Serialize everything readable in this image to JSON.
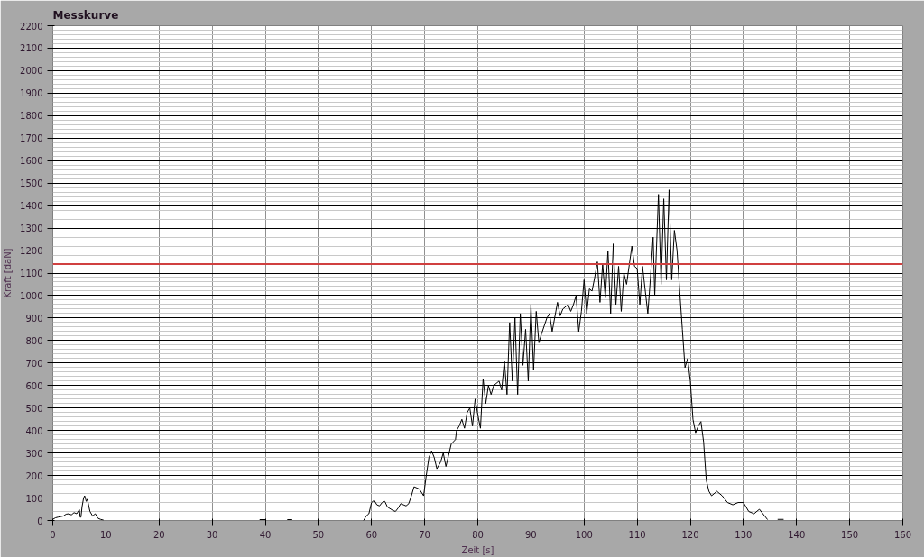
{
  "chart_data": {
    "type": "line",
    "title": "Messkurve",
    "xlabel": "Zeit [s]",
    "ylabel": "Kraft [daN]",
    "x": [
      0,
      0.5,
      1,
      2,
      2.5,
      3,
      3.5,
      4,
      4.5,
      5,
      5.15,
      5.3,
      5.5,
      5.8,
      6,
      6.3,
      6.5,
      7,
      7.5,
      8,
      8.5,
      9,
      9.5,
      9.7,
      39,
      40,
      42,
      44.2,
      45,
      50,
      58.5,
      59,
      59.5,
      60,
      60.5,
      61,
      61.5,
      62,
      62.5,
      63,
      64,
      64.5,
      65,
      65.5,
      66,
      66.5,
      67,
      67.5,
      68,
      69,
      69.8,
      70.3,
      70.8,
      71.3,
      71.8,
      72.3,
      73,
      73.5,
      74,
      74.5,
      75,
      75.8,
      76,
      76.5,
      77,
      77.5,
      78,
      78.5,
      79,
      79.5,
      80,
      80.5,
      81,
      81.5,
      82,
      82.5,
      83,
      84,
      84.5,
      85,
      85.5,
      86,
      86.5,
      87,
      87.5,
      88,
      88.5,
      89,
      89.5,
      90,
      90.5,
      91,
      91.5,
      92,
      93,
      93.5,
      94,
      95,
      95.5,
      96,
      97,
      97.5,
      98,
      98.5,
      99,
      99.5,
      100,
      100.5,
      101,
      101.5,
      102,
      102.5,
      103,
      103.5,
      104,
      104.5,
      105,
      105.5,
      106,
      106.5,
      107,
      107.5,
      108,
      109,
      109.5,
      110,
      110.5,
      111,
      112,
      112.5,
      113,
      113.3,
      114,
      114.5,
      115,
      115.5,
      116,
      116.5,
      117,
      117.5,
      118,
      118.5,
      119,
      119.5,
      120,
      120.5,
      121,
      121.5,
      122,
      122.5,
      123,
      123.5,
      124,
      125,
      126,
      127,
      128,
      129,
      130,
      131,
      132,
      133,
      134,
      134.5,
      135,
      136.5,
      137.5
    ],
    "series": [
      {
        "color": "#000000",
        "values": [
          5,
          12,
          15,
          20,
          28,
          30,
          25,
          35,
          30,
          48,
          15,
          15,
          60,
          100,
          110,
          85,
          95,
          40,
          20,
          30,
          10,
          5,
          2,
          null,
          4,
          4,
          null,
          4,
          4,
          null,
          0,
          20,
          30,
          80,
          90,
          70,
          65,
          80,
          85,
          60,
          45,
          40,
          55,
          75,
          70,
          65,
          75,
          110,
          150,
          140,
          110,
          200,
          280,
          310,
          280,
          230,
          260,
          300,
          240,
          290,
          340,
          360,
          400,
          420,
          450,
          410,
          480,
          500,
          420,
          540,
          470,
          410,
          630,
          520,
          600,
          560,
          600,
          620,
          580,
          710,
          560,
          880,
          620,
          900,
          560,
          920,
          690,
          850,
          620,
          960,
          670,
          930,
          790,
          830,
          900,
          920,
          840,
          970,
          910,
          940,
          960,
          930,
          960,
          1000,
          840,
          930,
          1070,
          920,
          1030,
          1020,
          1080,
          1150,
          970,
          1140,
          990,
          1200,
          920,
          1230,
          960,
          1130,
          930,
          1100,
          1050,
          1220,
          1130,
          1120,
          960,
          1130,
          920,
          1080,
          1260,
          1000,
          1450,
          1050,
          1430,
          1070,
          1470,
          1070,
          1290,
          1200,
          1020,
          850,
          680,
          720,
          620,
          450,
          390,
          420,
          440,
          350,
          180,
          130,
          110,
          130,
          110,
          80,
          70,
          80,
          80,
          40,
          30,
          50,
          20,
          5,
          null,
          5,
          5
        ]
      }
    ],
    "xlim": [
      0,
      160
    ],
    "xticks": [
      0,
      10,
      20,
      30,
      40,
      50,
      60,
      70,
      80,
      90,
      100,
      110,
      120,
      130,
      140,
      150,
      160
    ],
    "ylim": [
      0,
      2200
    ],
    "yticks": [
      0,
      100,
      200,
      300,
      400,
      500,
      600,
      700,
      800,
      900,
      1000,
      1100,
      1200,
      1300,
      1400,
      1500,
      1600,
      1700,
      1800,
      1900,
      2000,
      2100,
      2200
    ],
    "ref_lines": [
      {
        "axis": "y",
        "value": 1140,
        "color": "#d04040"
      }
    ],
    "grid": true,
    "line_style": "solid",
    "marker": "none"
  }
}
